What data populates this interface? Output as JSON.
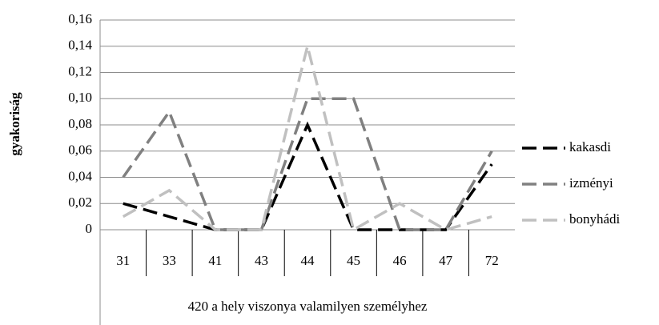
{
  "chart_data": {
    "type": "line",
    "x_label": "420 a hely viszonya valamilyen személyhez",
    "y_label": "gyakoriság",
    "categories": [
      "31",
      "33",
      "41",
      "43",
      "44",
      "45",
      "46",
      "47",
      "72"
    ],
    "series": [
      {
        "name": "kakasdi",
        "color": "#000000",
        "values": [
          0.02,
          0.01,
          0,
          0,
          0.08,
          0,
          0,
          0,
          0.05
        ]
      },
      {
        "name": "izményi",
        "color": "#808080",
        "values": [
          0.04,
          0.09,
          0,
          0,
          0.1,
          0.1,
          0,
          0,
          0.06
        ]
      },
      {
        "name": "bonyhádi",
        "color": "#c0c0c0",
        "values": [
          0.01,
          0.03,
          0,
          0,
          0.14,
          0,
          0.02,
          0,
          0.01
        ]
      }
    ],
    "ylim": [
      0,
      0.16
    ],
    "yticks": [
      0,
      {
        "value": 0.02,
        "label": "0,02"
      },
      {
        "value": 0.04,
        "label": "0,04"
      },
      {
        "value": 0.06,
        "label": "0,06"
      },
      {
        "value": 0.08,
        "label": "0,08"
      },
      {
        "value": 0.1,
        "label": "0,10"
      },
      {
        "value": 0.12,
        "label": "0,12"
      },
      {
        "value": 0.14,
        "label": "0,14"
      },
      {
        "value": 0.16,
        "label": "0,16"
      }
    ],
    "grid": true,
    "legend": "right"
  }
}
